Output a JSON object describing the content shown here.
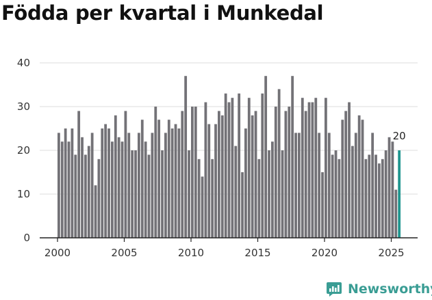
{
  "title": "Födda per kvartal i Munkedal",
  "brand": {
    "name": "Newsworthy",
    "color": "#3a9d94"
  },
  "chart_data": {
    "type": "bar",
    "title": "Födda per kvartal i Munkedal",
    "xlabel": "",
    "ylabel": "",
    "ylim": [
      0,
      40
    ],
    "yticks": [
      0,
      10,
      20,
      30,
      40
    ],
    "xticks": [
      "2000",
      "2005",
      "2010",
      "2015",
      "2020",
      "2025"
    ],
    "x_start_year": 2000,
    "grid": true,
    "bar_color": "#737277",
    "highlight_color": "#20968f",
    "highlight_label": "20",
    "values": [
      24,
      22,
      25,
      22,
      25,
      19,
      29,
      23,
      19,
      21,
      24,
      12,
      18,
      25,
      26,
      25,
      22,
      28,
      23,
      22,
      29,
      24,
      20,
      20,
      24,
      27,
      22,
      19,
      24,
      30,
      27,
      20,
      24,
      27,
      25,
      26,
      25,
      29,
      37,
      20,
      30,
      30,
      18,
      14,
      31,
      26,
      18,
      26,
      29,
      28,
      33,
      31,
      32,
      21,
      33,
      15,
      25,
      32,
      28,
      29,
      18,
      33,
      37,
      20,
      22,
      30,
      34,
      20,
      29,
      30,
      37,
      24,
      24,
      32,
      29,
      31,
      31,
      32,
      24,
      15,
      32,
      24,
      19,
      20,
      18,
      27,
      29,
      31,
      21,
      24,
      28,
      27,
      18,
      19,
      24,
      19,
      17,
      18,
      20,
      23,
      22,
      11,
      20
    ]
  }
}
